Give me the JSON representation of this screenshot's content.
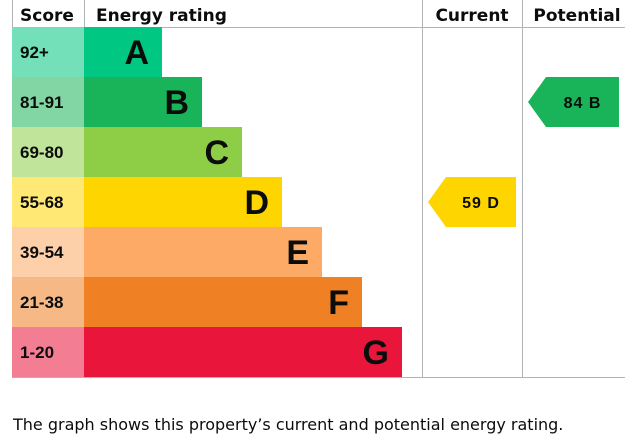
{
  "chart_data": {
    "type": "bar",
    "columns": {
      "score": "Score",
      "rating": "Energy rating",
      "current": "Current",
      "potential": "Potential"
    },
    "bands": [
      {
        "range": "92+",
        "letter": "A",
        "color": "#00c781"
      },
      {
        "range": "81-91",
        "letter": "B",
        "color": "#19b459"
      },
      {
        "range": "69-80",
        "letter": "C",
        "color": "#8dce46"
      },
      {
        "range": "55-68",
        "letter": "D",
        "color": "#ffd500"
      },
      {
        "range": "39-54",
        "letter": "E",
        "color": "#fcaa65"
      },
      {
        "range": "21-38",
        "letter": "F",
        "color": "#ef8023"
      },
      {
        "range": "1-20",
        "letter": "G",
        "color": "#e9153b"
      }
    ],
    "current": {
      "value": 59,
      "letter": "D",
      "label": "59 D",
      "color": "#ffd500",
      "text_color": "#0b0c0c"
    },
    "potential": {
      "value": 84,
      "letter": "B",
      "label": "84 B",
      "color": "#19b459",
      "text_color": "#0b0c0c"
    }
  },
  "caption": "The graph shows this property’s current and potential energy rating."
}
